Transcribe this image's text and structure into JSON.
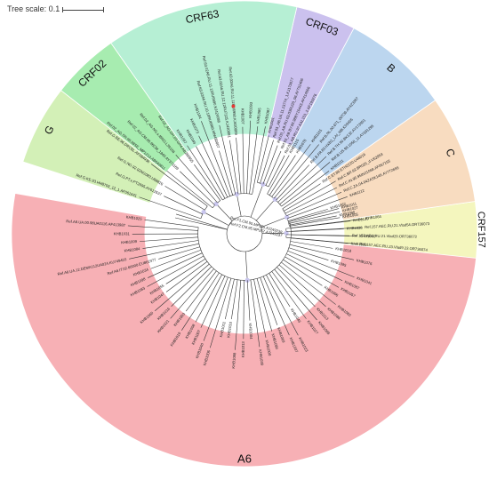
{
  "scale": {
    "label": "Tree scale: 0.1"
  },
  "clades": [
    {
      "name": "A6",
      "color": "#f7b0b5",
      "from_deg": 170,
      "to_deg": 377,
      "leaves": [
        "KHB1025",
        "Ref.A6.UA.00.98UA0116.AF413987",
        "KHB1031",
        "KHB1009",
        "KHB1084",
        "Ref.A6.UA.12.DEMA112UA024.KU749403",
        "Ref.A6.IT.02.60000.EU861977",
        "KHB1034",
        "KHB1098",
        "KHB1083",
        "KHB1055",
        "KHB1047",
        "KHB1060",
        "KHB1016",
        "KHB1021",
        "KHB1003",
        "KHB1019",
        "KHB1008",
        "KHB1007",
        "KHB1040",
        "KHB1006",
        "KHB1002",
        "KHB1010",
        "KHB1088",
        "KHB1013",
        "KHB1004",
        "KHB1039",
        "KHB1000",
        "KHB1080",
        "KHB1069",
        "KHB1037",
        "KHB1023",
        "KHB1046",
        "KHB1027",
        "KHB1068",
        "KHB1113",
        "KHB1086",
        "KHB1080",
        "KHB1096",
        "KHB1057",
        "KHB1087",
        "KHB1041",
        "KHB1095",
        "KHB1076",
        "KHB1018",
        "KHB1033",
        "KHB1040",
        "KHB1038",
        "KHB1120",
        "KHB1090",
        "KHB1011"
      ]
    },
    {
      "name": "CRF157",
      "color": "#f4f6be",
      "from_deg": -6,
      "to_deg": 8,
      "leaves": [
        "Ref.157.AEC.RU.23.Vlad9.23.OR736074",
        "Ref.157.AEC.RU.21.Vlad29.OR736072",
        "Ref.157.AEC.RU.21.Vlad54.OR736073",
        "KHB1064"
      ]
    },
    {
      "name": "C",
      "color": "#f8dcc0",
      "from_deg": 8,
      "to_deg": 35,
      "leaves": [
        "KHB1005",
        "KHB1027",
        "KHB1062",
        "KHB1112",
        "Ref.C.ZA.04.04ZASK146.AY772699",
        "Ref.C.IN.95.95IN21068.AF067155",
        "Ref.C.BR.92.BR025_d.U52953",
        "Ref.C.ET.86.ETH2220.U46016"
      ]
    },
    {
      "name": "B",
      "color": "#bcd6ef",
      "from_deg": 35,
      "to_deg": 62,
      "leaves": [
        "KHB1111",
        "Ref.B.US.98.1058_11.AY331295",
        "Ref.B.TH.90.BK132.AY173951",
        "Ref.B.FR.83.HXB2_LAI_IIIB.K03455",
        "Ref.B.NL.00.671_00T36.AY423387",
        "KHB1101",
        "KHB1078",
        "KHB1115"
      ]
    },
    {
      "name": "CRF03",
      "color": "#cbc1ee",
      "from_deg": 62,
      "to_deg": 77,
      "leaves": [
        "Ref.03_AB.RU.97.KAL153_2.AF193276",
        "Ref.03_AB.BY.99.98BY10443.AF414006",
        "Ref.03_AB.RU.03.03RU20_06.AY751406",
        "Ref.03_AB.UA.11.13774_1.KJ173077",
        "KHB1061"
      ]
    },
    {
      "name": "CRF63",
      "color": "#b6efd4",
      "from_deg": 77,
      "to_deg": 125,
      "leaves": [
        "KHB1087",
        "KHB1085",
        "KHB1093",
        "KHB1007",
        "Ref.63.02A6.RU.11.11RU6950.KJ420089",
        "Ref.63.02A6.RU.12.12RU7125.KJ420081",
        "Ref.63.02A6.RU.11.11RU6990.KJ420088",
        "Ref.63.02A6.RU.10.10RU6989.MN480007",
        "KHB1104",
        "KHB1073",
        "KHB1049",
        "KHB1097"
      ]
    },
    {
      "name": "CRF02",
      "color": "#a7ecb0",
      "from_deg": 125,
      "to_deg": 142,
      "leaves": [
        "Ref.02_AG.GH.03.GH4.AB286855",
        "Ref.02_AG.NG.x.IBNG.L39106",
        "Ref.02_AG.CM.96.96CM_1849.AY371169",
        "Ref.02_AG.SN.98.98SE_MP1213.AB049811"
      ]
    },
    {
      "name": "G",
      "color": "#d3f0b7",
      "from_deg": 142,
      "to_deg": 162,
      "leaves": [
        "Ref.G.BE.96.DRCBL.AF084936",
        "Ref.G.NG.92.92NG083.U88826",
        "Ref.G.PT.x.PT2695.AY612637",
        "Ref.G.KE.93.HH8793_12_1.AF061641"
      ]
    }
  ],
  "outgroups": [
    "Ref.F1.CM.95.MP255.AJ249238",
    "Ref.F2.CM.95.MP257.AJ249237"
  ],
  "marked_leaves": [
    "KHB1065",
    "Ref.63.02A6.RU.11.11RU6950.KJ420089"
  ],
  "marker_color": "#e53935",
  "node_color": "#c9c6ee"
}
